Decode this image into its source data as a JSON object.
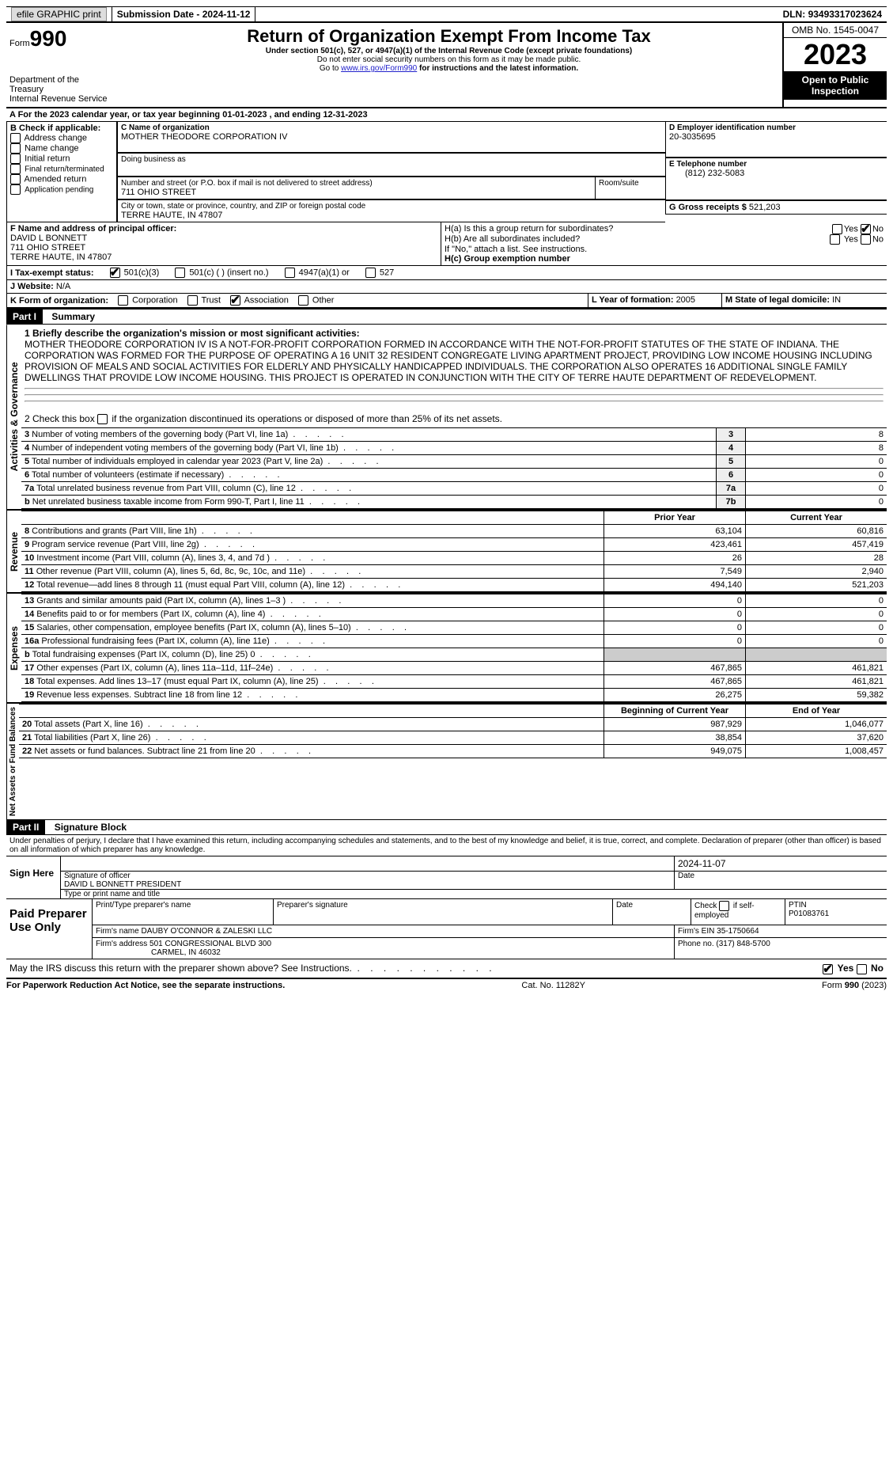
{
  "topbar": {
    "efile": "efile GRAPHIC print",
    "submission_label": "Submission Date - ",
    "submission_date": "2024-11-12",
    "dln_label": "DLN: ",
    "dln": "93493317023624"
  },
  "header": {
    "form_label": "Form",
    "form_no": "990",
    "dept": "Department of the Treasury\nInternal Revenue Service",
    "title": "Return of Organization Exempt From Income Tax",
    "sub1": "Under section 501(c), 527, or 4947(a)(1) of the Internal Revenue Code (except private foundations)",
    "sub2": "Do not enter social security numbers on this form as it may be made public.",
    "sub3_pre": "Go to ",
    "sub3_link": "www.irs.gov/Form990",
    "sub3_post": " for instructions and the latest information.",
    "omb": "OMB No. 1545-0047",
    "year": "2023",
    "inspection": "Open to Public Inspection"
  },
  "lineA": {
    "text_pre": "A For the 2023 calendar year, or tax year beginning ",
    "begin": "01-01-2023",
    "mid": "   , and ending ",
    "end": "12-31-2023"
  },
  "boxB": {
    "label": "B Check if applicable:",
    "items": [
      "Address change",
      "Name change",
      "Initial return",
      "Final return/terminated",
      "Amended return",
      "Application pending"
    ]
  },
  "boxC": {
    "name_label": "C Name of organization",
    "name": "MOTHER THEODORE CORPORATION IV",
    "dba_label": "Doing business as",
    "addr_label": "Number and street (or P.O. box if mail is not delivered to street address)",
    "room_label": "Room/suite",
    "addr": "711 OHIO STREET",
    "city_label": "City or town, state or province, country, and ZIP or foreign postal code",
    "city": "TERRE HAUTE, IN  47807"
  },
  "boxD": {
    "label": "D Employer identification number",
    "val": "20-3035695"
  },
  "boxE": {
    "label": "E Telephone number",
    "val": "(812) 232-5083"
  },
  "boxG": {
    "label": "G Gross receipts $ ",
    "val": "521,203"
  },
  "boxF": {
    "label": "F  Name and address of principal officer:",
    "name": "DAVID L BONNETT",
    "addr1": "711 OHIO STREET",
    "addr2": "TERRE HAUTE, IN  47807"
  },
  "boxH": {
    "a_label": "H(a)  Is this a group return for subordinates?",
    "b_label": "H(b)  Are all subordinates included?",
    "b_note": "If \"No,\" attach a list. See instructions.",
    "c_label": "H(c)  Group exemption number ",
    "yes": "Yes",
    "no": "No"
  },
  "boxI": {
    "label": "I   Tax-exempt status:",
    "o1": "501(c)(3)",
    "o2": "501(c) (  ) (insert no.)",
    "o3": "4947(a)(1) or",
    "o4": "527"
  },
  "boxJ": {
    "label": "J   Website: ",
    "val": "N/A"
  },
  "boxK": {
    "label": "K Form of organization:",
    "o1": "Corporation",
    "o2": "Trust",
    "o3": "Association",
    "o4": "Other"
  },
  "boxL": {
    "label": "L Year of formation: ",
    "val": "2005"
  },
  "boxM": {
    "label": "M State of legal domicile: ",
    "val": "IN"
  },
  "part1": {
    "header": "Part I",
    "title": "Summary",
    "l1_label": "1  Briefly describe the organization's mission or most significant activities:",
    "l1_text": "MOTHER THEODORE CORPORATION IV IS A NOT-FOR-PROFIT CORPORATION FORMED IN ACCORDANCE WITH THE NOT-FOR-PROFIT STATUTES OF THE STATE OF INDIANA. THE CORPORATION WAS FORMED FOR THE PURPOSE OF OPERATING A 16 UNIT 32 RESIDENT CONGREGATE LIVING APARTMENT PROJECT, PROVIDING LOW INCOME HOUSING INCLUDING PROVISION OF MEALS AND SOCIAL ACTIVITIES FOR ELDERLY AND PHYSICALLY HANDICAPPED INDIVIDUALS. THE CORPORATION ALSO OPERATES 16 ADDITIONAL SINGLE FAMILY DWELLINGS THAT PROVIDE LOW INCOME HOUSING. THIS PROJECT IS OPERATED IN CONJUNCTION WITH THE CITY OF TERRE HAUTE DEPARTMENT OF REDEVELOPMENT.",
    "l2": "2   Check this box     if the organization discontinued its operations or disposed of more than 25% of its net assets.",
    "vert_ag": "Activities & Governance",
    "vert_rev": "Revenue",
    "vert_exp": "Expenses",
    "vert_na": "Net Assets or Fund Balances",
    "col_prior": "Prior Year",
    "col_current": "Current Year",
    "col_boy": "Beginning of Current Year",
    "col_eoy": "End of Year",
    "rows_gov": [
      {
        "n": "3",
        "t": "Number of voting members of the governing body (Part VI, line 1a)",
        "b": "3",
        "v": "8"
      },
      {
        "n": "4",
        "t": "Number of independent voting members of the governing body (Part VI, line 1b)",
        "b": "4",
        "v": "8"
      },
      {
        "n": "5",
        "t": "Total number of individuals employed in calendar year 2023 (Part V, line 2a)",
        "b": "5",
        "v": "0"
      },
      {
        "n": "6",
        "t": "Total number of volunteers (estimate if necessary)",
        "b": "6",
        "v": "0"
      },
      {
        "n": "7a",
        "t": "Total unrelated business revenue from Part VIII, column (C), line 12",
        "b": "7a",
        "v": "0"
      },
      {
        "n": "b",
        "t": "Net unrelated business taxable income from Form 990-T, Part I, line 11",
        "b": "7b",
        "v": "0"
      }
    ],
    "rows_rev": [
      {
        "n": "8",
        "t": "Contributions and grants (Part VIII, line 1h)",
        "p": "63,104",
        "c": "60,816"
      },
      {
        "n": "9",
        "t": "Program service revenue (Part VIII, line 2g)",
        "p": "423,461",
        "c": "457,419"
      },
      {
        "n": "10",
        "t": "Investment income (Part VIII, column (A), lines 3, 4, and 7d )",
        "p": "26",
        "c": "28"
      },
      {
        "n": "11",
        "t": "Other revenue (Part VIII, column (A), lines 5, 6d, 8c, 9c, 10c, and 11e)",
        "p": "7,549",
        "c": "2,940"
      },
      {
        "n": "12",
        "t": "Total revenue—add lines 8 through 11 (must equal Part VIII, column (A), line 12)",
        "p": "494,140",
        "c": "521,203"
      }
    ],
    "rows_exp": [
      {
        "n": "13",
        "t": "Grants and similar amounts paid (Part IX, column (A), lines 1–3 )",
        "p": "0",
        "c": "0"
      },
      {
        "n": "14",
        "t": "Benefits paid to or for members (Part IX, column (A), line 4)",
        "p": "0",
        "c": "0"
      },
      {
        "n": "15",
        "t": "Salaries, other compensation, employee benefits (Part IX, column (A), lines 5–10)",
        "p": "0",
        "c": "0"
      },
      {
        "n": "16a",
        "t": "Professional fundraising fees (Part IX, column (A), line 11e)",
        "p": "0",
        "c": "0"
      },
      {
        "n": "b",
        "t": "Total fundraising expenses (Part IX, column (D), line 25) 0",
        "p": "grey",
        "c": "grey"
      },
      {
        "n": "17",
        "t": "Other expenses (Part IX, column (A), lines 11a–11d, 11f–24e)",
        "p": "467,865",
        "c": "461,821"
      },
      {
        "n": "18",
        "t": "Total expenses. Add lines 13–17 (must equal Part IX, column (A), line 25)",
        "p": "467,865",
        "c": "461,821"
      },
      {
        "n": "19",
        "t": "Revenue less expenses. Subtract line 18 from line 12",
        "p": "26,275",
        "c": "59,382"
      }
    ],
    "rows_na": [
      {
        "n": "20",
        "t": "Total assets (Part X, line 16)",
        "p": "987,929",
        "c": "1,046,077"
      },
      {
        "n": "21",
        "t": "Total liabilities (Part X, line 26)",
        "p": "38,854",
        "c": "37,620"
      },
      {
        "n": "22",
        "t": "Net assets or fund balances. Subtract line 21 from line 20",
        "p": "949,075",
        "c": "1,008,457"
      }
    ]
  },
  "part2": {
    "header": "Part II",
    "title": "Signature Block",
    "decl": "Under penalties of perjury, I declare that I have examined this return, including accompanying schedules and statements, and to the best of my knowledge and belief, it is true, correct, and complete. Declaration of preparer (other than officer) is based on all information of which preparer has any knowledge.",
    "sign_here": "Sign Here",
    "sig_officer_label": "Signature of officer",
    "sig_date": "2024-11-07",
    "date_label": "Date",
    "officer_name": "DAVID L BONNETT PRESIDENT",
    "type_label": "Type or print name and title",
    "paid_label": "Paid Preparer Use Only",
    "prep_name_label": "Print/Type preparer's name",
    "prep_sig_label": "Preparer's signature",
    "check_if": "Check      if self-employed",
    "ptin_label": "PTIN",
    "ptin": "P01083761",
    "firm_name_label": "Firm's name   ",
    "firm_name": "DAUBY O'CONNOR & ZALESKI LLC",
    "firm_ein_label": "Firm's EIN  ",
    "firm_ein": "35-1750664",
    "firm_addr_label": "Firm's address ",
    "firm_addr1": "501 CONGRESSIONAL BLVD 300",
    "firm_addr2": "CARMEL, IN  46032",
    "phone_label": "Phone no. ",
    "phone": "(317) 848-5700",
    "discuss": "May the IRS discuss this return with the preparer shown above? See Instructions.",
    "yes": "Yes",
    "no": "No"
  },
  "footer": {
    "l": "For Paperwork Reduction Act Notice, see the separate instructions.",
    "c": "Cat. No. 11282Y",
    "r": "Form 990 (2023)"
  }
}
